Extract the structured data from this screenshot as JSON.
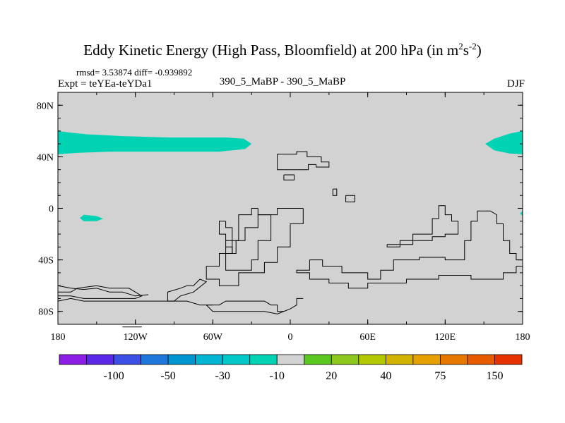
{
  "header": {
    "title_main": "Eddy Kinetic Energy (High Pass, Bloomfield) at 200 hPa (in m",
    "title_sup1": "2",
    "title_mid": "s",
    "title_sup2": "-2",
    "title_end": ")",
    "stats": "rmsd= 3.53874 diff= -0.939892",
    "experiment": "Expt = teYEa-teYDa1",
    "subtitle": "390_5_MaBP - 390_5_MaBP",
    "season": "DJF"
  },
  "chart_data": {
    "type": "heatmap",
    "title": "Eddy Kinetic Energy (High Pass, Bloomfield) at 200 hPa (in m2s-2)",
    "x_axis": {
      "range": [
        -180,
        180
      ],
      "ticks": [
        -180,
        -120,
        -60,
        0,
        60,
        120,
        180
      ],
      "tick_labels": [
        "180",
        "120W",
        "60W",
        "0",
        "60E",
        "120E",
        "180"
      ]
    },
    "y_axis": {
      "range": [
        -90,
        90
      ],
      "ticks": [
        80,
        40,
        0,
        -40,
        -80
      ],
      "tick_labels": [
        "80N",
        "40N",
        "0",
        "40S",
        "80S"
      ]
    },
    "background_color": "#d2d2d2",
    "colorbar": {
      "colors": [
        "#8c1ee6",
        "#5a28e6",
        "#3c50e6",
        "#1e78dc",
        "#0096d2",
        "#00b4d2",
        "#00c8c8",
        "#00d2b4",
        "#d2d2d2",
        "#5ac81e",
        "#8cc81e",
        "#b4c800",
        "#d2b400",
        "#e6a000",
        "#e67800",
        "#e65a00",
        "#e63200"
      ],
      "labels": [
        "-100",
        "-50",
        "-30",
        "-10",
        "20",
        "40",
        "75",
        "150"
      ],
      "label_boundaries": [
        2,
        4,
        6,
        8,
        10,
        12,
        14,
        16
      ]
    },
    "regions": [
      {
        "value_bin": "-10 to -30",
        "color": "#00d2b4",
        "polygon": [
          [
            -180,
            60
          ],
          [
            -172,
            59
          ],
          [
            -158,
            57.5
          ],
          [
            -130,
            56
          ],
          [
            -110,
            55.5
          ],
          [
            -95,
            55
          ],
          [
            -70,
            55
          ],
          [
            -50,
            55
          ],
          [
            -36,
            54
          ],
          [
            -30,
            50
          ],
          [
            -35,
            46
          ],
          [
            -55,
            44
          ],
          [
            -80,
            44
          ],
          [
            -110,
            44
          ],
          [
            -140,
            44
          ],
          [
            -165,
            43
          ],
          [
            -180,
            42
          ]
        ]
      },
      {
        "value_bin": "-10 to -30",
        "color": "#00d2b4",
        "polygon": [
          [
            -160,
            -5
          ],
          [
            -150,
            -6
          ],
          [
            -145,
            -8
          ],
          [
            -150,
            -10
          ],
          [
            -160,
            -10
          ],
          [
            -163,
            -7.5
          ]
        ]
      },
      {
        "value_bin": "-10 to -30",
        "color": "#00d2b4",
        "polygon": [
          [
            180,
            60
          ],
          [
            170,
            58
          ],
          [
            158,
            54
          ],
          [
            151,
            50
          ],
          [
            158,
            45
          ],
          [
            170,
            42.5
          ],
          [
            180,
            42
          ]
        ]
      },
      {
        "value_bin": "-10 to -30",
        "color": "#00d2b4",
        "polygon": [
          [
            180,
            -2
          ],
          [
            178,
            -4
          ],
          [
            180,
            -6
          ]
        ]
      }
    ],
    "coastlines": [
      [
        [
          -10,
          38
        ],
        [
          -10,
          42
        ],
        [
          5,
          42
        ],
        [
          5,
          44
        ],
        [
          13,
          44
        ],
        [
          13,
          40
        ],
        [
          24,
          40
        ],
        [
          24,
          36
        ],
        [
          30,
          36
        ],
        [
          30,
          32
        ],
        [
          20,
          32
        ],
        [
          20,
          34
        ],
        [
          14,
          34
        ],
        [
          14,
          30
        ],
        [
          -10,
          30
        ],
        [
          -10,
          38
        ]
      ],
      [
        [
          -5,
          26
        ],
        [
          -5,
          22
        ],
        [
          3,
          22
        ],
        [
          3,
          26
        ],
        [
          -5,
          26
        ]
      ],
      [
        [
          33,
          15
        ],
        [
          33,
          10
        ],
        [
          36,
          10
        ],
        [
          36,
          15
        ],
        [
          33,
          15
        ]
      ],
      [
        [
          43,
          10
        ],
        [
          43,
          5
        ],
        [
          50,
          5
        ],
        [
          50,
          10
        ],
        [
          43,
          10
        ]
      ],
      [
        [
          -25,
          0
        ],
        [
          -25,
          -5
        ],
        [
          -15,
          -5
        ],
        [
          -15,
          -25
        ],
        [
          -25,
          -25
        ],
        [
          -25,
          -40
        ],
        [
          -30,
          -40
        ],
        [
          -30,
          -48
        ],
        [
          -50,
          -48
        ],
        [
          -50,
          -35
        ],
        [
          -42,
          -35
        ],
        [
          -42,
          -25
        ],
        [
          -40,
          -25
        ],
        [
          -40,
          -5
        ],
        [
          -30,
          -5
        ],
        [
          -30,
          0
        ],
        [
          -25,
          0
        ]
      ],
      [
        [
          10,
          0
        ],
        [
          10,
          -12
        ],
        [
          0,
          -12
        ],
        [
          0,
          -30
        ],
        [
          -10,
          -30
        ],
        [
          -10,
          -42
        ],
        [
          -20,
          -42
        ],
        [
          -20,
          -50
        ],
        [
          -40,
          -50
        ],
        [
          -40,
          -60
        ],
        [
          -55,
          -60
        ],
        [
          -55,
          -55
        ],
        [
          -65,
          -55
        ],
        [
          -65,
          -45
        ],
        [
          -55,
          -45
        ],
        [
          -55,
          -35
        ],
        [
          -45,
          -35
        ],
        [
          -45,
          -25
        ],
        [
          -35,
          -25
        ],
        [
          -35,
          -15
        ],
        [
          -25,
          -15
        ],
        [
          -25,
          -5
        ],
        [
          -10,
          -5
        ],
        [
          -10,
          0
        ],
        [
          10,
          0
        ]
      ],
      [
        [
          -50,
          -10
        ],
        [
          -50,
          -15
        ],
        [
          -45,
          -15
        ],
        [
          -45,
          -25
        ],
        [
          -50,
          -25
        ],
        [
          -50,
          -30
        ],
        [
          -45,
          -30
        ],
        [
          -45,
          -35
        ],
        [
          -50,
          -35
        ],
        [
          -50,
          -20
        ],
        [
          -55,
          -20
        ],
        [
          -55,
          -10
        ],
        [
          -50,
          -10
        ]
      ],
      [
        [
          15,
          -40
        ],
        [
          25,
          -40
        ],
        [
          25,
          -45
        ],
        [
          40,
          -45
        ],
        [
          40,
          -50
        ],
        [
          60,
          -50
        ],
        [
          60,
          -55
        ],
        [
          70,
          -55
        ],
        [
          70,
          -48
        ],
        [
          80,
          -48
        ],
        [
          80,
          -40
        ],
        [
          100,
          -40
        ],
        [
          100,
          -38
        ],
        [
          120,
          -38
        ],
        [
          120,
          -40
        ],
        [
          135,
          -40
        ],
        [
          135,
          -25
        ],
        [
          140,
          -25
        ],
        [
          140,
          -10
        ],
        [
          145,
          -10
        ],
        [
          145,
          -2
        ],
        [
          155,
          -2
        ],
        [
          160,
          -5
        ],
        [
          160,
          -12
        ],
        [
          165,
          -12
        ],
        [
          165,
          -25
        ],
        [
          170,
          -25
        ],
        [
          170,
          -35
        ],
        [
          175,
          -35
        ],
        [
          175,
          -40
        ],
        [
          180,
          -40
        ],
        [
          180,
          -45
        ],
        [
          175,
          -45
        ],
        [
          175,
          -50
        ],
        [
          165,
          -50
        ],
        [
          165,
          -55
        ],
        [
          140,
          -55
        ],
        [
          140,
          -52
        ],
        [
          115,
          -52
        ],
        [
          115,
          -55
        ],
        [
          90,
          -55
        ],
        [
          90,
          -58
        ],
        [
          60,
          -58
        ],
        [
          60,
          -62
        ],
        [
          45,
          -62
        ],
        [
          45,
          -58
        ],
        [
          30,
          -58
        ],
        [
          30,
          -55
        ],
        [
          15,
          -55
        ],
        [
          15,
          -50
        ],
        [
          5,
          -50
        ],
        [
          5,
          -48
        ],
        [
          15,
          -48
        ],
        [
          15,
          -40
        ]
      ],
      [
        [
          75,
          -28
        ],
        [
          75,
          -30
        ],
        [
          85,
          -30
        ],
        [
          85,
          -25
        ],
        [
          95,
          -25
        ],
        [
          95,
          -20
        ],
        [
          110,
          -20
        ],
        [
          110,
          -8
        ],
        [
          115,
          -8
        ],
        [
          115,
          2
        ],
        [
          120,
          2
        ],
        [
          120,
          -5
        ],
        [
          125,
          -5
        ],
        [
          125,
          -10
        ],
        [
          130,
          -10
        ],
        [
          130,
          -20
        ],
        [
          120,
          -20
        ],
        [
          120,
          -22
        ],
        [
          110,
          -22
        ],
        [
          110,
          -25
        ],
        [
          95,
          -25
        ],
        [
          95,
          -28
        ],
        [
          75,
          -28
        ]
      ],
      [
        [
          -180,
          -65
        ],
        [
          -170,
          -65
        ],
        [
          -165,
          -62
        ],
        [
          -150,
          -60
        ],
        [
          -140,
          -62
        ],
        [
          -125,
          -62
        ],
        [
          -120,
          -65
        ],
        [
          -115,
          -68
        ],
        [
          -120,
          -70
        ],
        [
          -140,
          -70
        ],
        [
          -160,
          -70
        ],
        [
          -170,
          -68
        ],
        [
          -180,
          -68
        ]
      ],
      [
        [
          -180,
          -72
        ],
        [
          -170,
          -70
        ],
        [
          -160,
          -72
        ],
        [
          -140,
          -72
        ],
        [
          -120,
          -72
        ],
        [
          -100,
          -72
        ],
        [
          -80,
          -72
        ],
        [
          -70,
          -75
        ],
        [
          -60,
          -75
        ]
      ],
      [
        [
          -180,
          -60
        ],
        [
          -170,
          -62
        ],
        [
          -160,
          -63
        ],
        [
          -150,
          -62
        ],
        [
          -140,
          -65
        ],
        [
          -130,
          -65
        ],
        [
          -120,
          -68
        ],
        [
          -110,
          -67
        ]
      ],
      [
        [
          -95,
          -72
        ],
        [
          -95,
          -65
        ],
        [
          -85,
          -62
        ],
        [
          -80,
          -60
        ],
        [
          -75,
          -60
        ],
        [
          -70,
          -55
        ],
        [
          -65,
          -57
        ],
        [
          -75,
          -65
        ],
        [
          -85,
          -68
        ],
        [
          -90,
          -72
        ],
        [
          -95,
          -72
        ]
      ],
      [
        [
          -65,
          -75
        ],
        [
          -55,
          -75
        ],
        [
          -50,
          -72
        ],
        [
          -40,
          -72
        ],
        [
          -30,
          -72
        ],
        [
          -20,
          -72
        ],
        [
          -15,
          -75
        ],
        [
          -10,
          -75
        ],
        [
          -10,
          -80
        ],
        [
          -5,
          -80
        ],
        [
          0,
          -78
        ],
        [
          5,
          -75
        ],
        [
          5,
          -70
        ],
        [
          10,
          -70
        ]
      ],
      [
        [
          -65,
          -75
        ],
        [
          -60,
          -80
        ],
        [
          -40,
          -80
        ],
        [
          -20,
          -80
        ],
        [
          -10,
          -82
        ],
        [
          -5,
          -80
        ]
      ],
      [
        [
          -115,
          -90
        ],
        [
          -60,
          -90
        ]
      ],
      [
        [
          -130,
          -92
        ],
        [
          -115,
          -92
        ]
      ]
    ]
  }
}
